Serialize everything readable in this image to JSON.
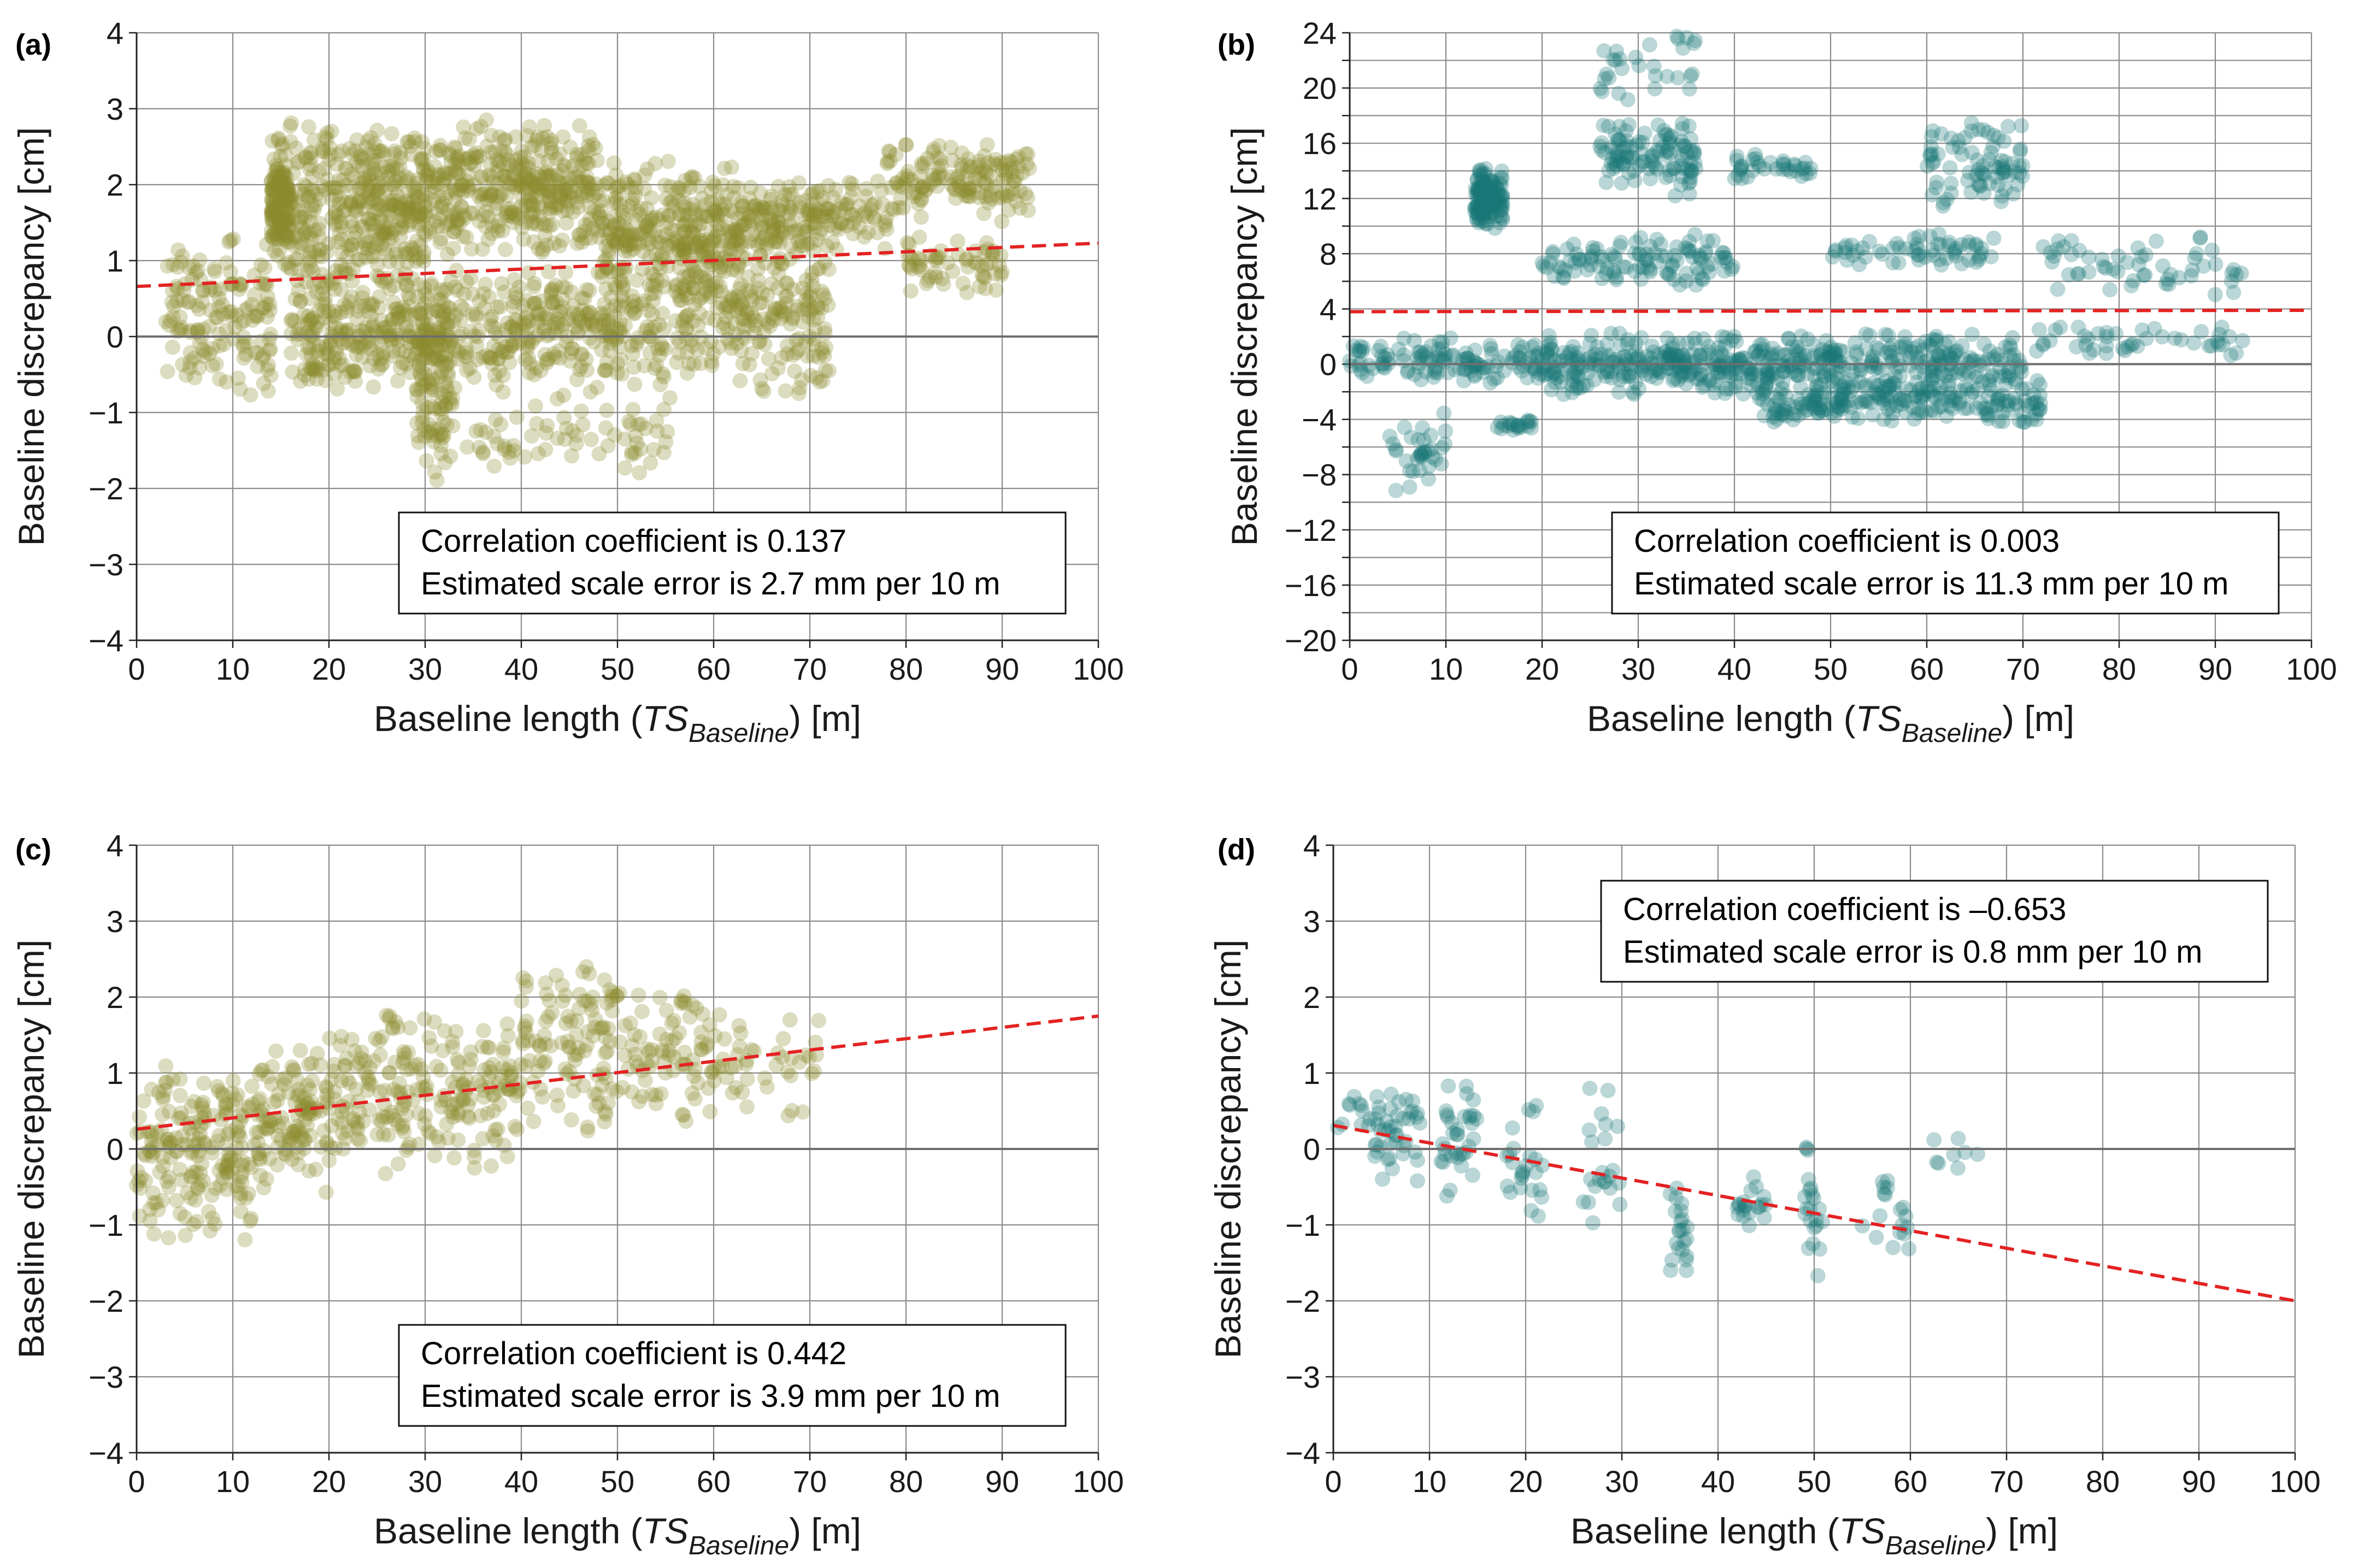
{
  "colors": {
    "olive": "#8a8a30",
    "teal": "#1b7878",
    "trend": "#e32222",
    "zero": "#6e6e6e",
    "grid": "#8c8c8c"
  },
  "chart_data": [
    {
      "panel": "(a)",
      "type": "scatter",
      "color_key": "olive",
      "xlabel": "Baseline length (",
      "xlabel_italic": "TS",
      "xlabel_sub": "Baseline",
      "xlabel_tail": ") [m]",
      "ylabel": "Baseline discrepancy [cm]",
      "xlim": [
        0,
        100
      ],
      "ylim": [
        -4,
        4
      ],
      "xticks": [
        0,
        10,
        20,
        30,
        40,
        50,
        60,
        70,
        80,
        90,
        100
      ],
      "xtick_labels": [
        "0",
        "10",
        "20",
        "30",
        "40",
        "50",
        "60",
        "70",
        "80",
        "90",
        "100"
      ],
      "yticks": [
        -4,
        -3,
        -2,
        -1,
        0,
        1,
        2,
        3,
        4
      ],
      "ytick_labels": [
        "−4",
        "−3",
        "−2",
        "−1",
        "0",
        "1",
        "2",
        "3",
        "4"
      ],
      "grid_y": [
        -4,
        -3,
        -2,
        -1,
        0,
        1,
        2,
        3,
        4
      ],
      "trend": {
        "x": [
          0,
          100
        ],
        "y": [
          0.66,
          1.23
        ]
      },
      "annotation_lines": [
        "Correlation coefficient is 0.137",
        "Estimated scale error is 2.7 mm per 10 m"
      ],
      "annotation_pos": "bottom-right",
      "clusters": [
        {
          "x": [
            3,
            14
          ],
          "y": [
            -0.9,
            1.4
          ],
          "n": 150
        },
        {
          "x": [
            14,
            16
          ],
          "y": [
            1.2,
            2.4
          ],
          "n": 110
        },
        {
          "x": [
            14,
            30
          ],
          "y": [
            0.5,
            2.9
          ],
          "n": 420
        },
        {
          "x": [
            16,
            30
          ],
          "y": [
            -0.8,
            0.9
          ],
          "n": 240
        },
        {
          "x": [
            29,
            33
          ],
          "y": [
            -2.0,
            0.6
          ],
          "n": 110
        },
        {
          "x": [
            30,
            48
          ],
          "y": [
            1.0,
            2.9
          ],
          "n": 380
        },
        {
          "x": [
            30,
            55
          ],
          "y": [
            -0.8,
            1.0
          ],
          "n": 340
        },
        {
          "x": [
            34,
            56
          ],
          "y": [
            -1.9,
            -0.6
          ],
          "n": 70
        },
        {
          "x": [
            48,
            62
          ],
          "y": [
            0.3,
            2.4
          ],
          "n": 280
        },
        {
          "x": [
            56,
            72
          ],
          "y": [
            -0.8,
            1.5
          ],
          "n": 260
        },
        {
          "x": [
            62,
            78
          ],
          "y": [
            1.1,
            2.1
          ],
          "n": 190
        },
        {
          "x": [
            78,
            93
          ],
          "y": [
            1.5,
            2.6
          ],
          "n": 150
        },
        {
          "x": [
            80,
            90
          ],
          "y": [
            0.5,
            1.4
          ],
          "n": 60
        }
      ]
    },
    {
      "panel": "(b)",
      "type": "scatter",
      "color_key": "teal",
      "xlabel": "Baseline length (",
      "xlabel_italic": "TS",
      "xlabel_sub": "Baseline",
      "xlabel_tail": ") [m]",
      "ylabel": "Baseline discrepancy [cm]",
      "xlim": [
        0,
        100
      ],
      "ylim": [
        -20,
        24
      ],
      "xticks": [
        0,
        10,
        20,
        30,
        40,
        50,
        60,
        70,
        80,
        90,
        100
      ],
      "xtick_labels": [
        "0",
        "10",
        "20",
        "30",
        "40",
        "50",
        "60",
        "70",
        "80",
        "90",
        "100"
      ],
      "yticks": [
        -20,
        -16,
        -12,
        -8,
        -4,
        0,
        4,
        8,
        12,
        16,
        20,
        24
      ],
      "ytick_labels": [
        "−20",
        "−16",
        "−12",
        "−8",
        "−4",
        "0",
        "4",
        "8",
        "12",
        "16",
        "20",
        "24"
      ],
      "grid_y": [
        -20,
        -18,
        -16,
        -14,
        -12,
        -10,
        -8,
        -6,
        -4,
        -2,
        0,
        2,
        4,
        6,
        8,
        10,
        12,
        14,
        16,
        18,
        20,
        22,
        24
      ],
      "trend": {
        "x": [
          0,
          100
        ],
        "y": [
          3.8,
          3.9
        ]
      },
      "annotation_lines": [
        "Correlation coefficient is 0.003",
        "Estimated scale error is 11.3 mm per 10 m"
      ],
      "annotation_pos": "bottom-right",
      "clusters": [
        {
          "x": [
            0,
            20
          ],
          "y": [
            -1.5,
            2.0
          ],
          "n": 130
        },
        {
          "x": [
            4,
            10
          ],
          "y": [
            -9.5,
            -3.5
          ],
          "n": 35
        },
        {
          "x": [
            13,
            16
          ],
          "y": [
            9.5,
            14.5
          ],
          "n": 130
        },
        {
          "x": [
            15,
            19
          ],
          "y": [
            -5.0,
            -4.0
          ],
          "n": 20
        },
        {
          "x": [
            20,
            70
          ],
          "y": [
            -2.5,
            2.5
          ],
          "n": 520
        },
        {
          "x": [
            20,
            40
          ],
          "y": [
            5.5,
            9.5
          ],
          "n": 110
        },
        {
          "x": [
            26,
            36
          ],
          "y": [
            12.0,
            18.0
          ],
          "n": 110
        },
        {
          "x": [
            26,
            36
          ],
          "y": [
            19.0,
            24.0
          ],
          "n": 30
        },
        {
          "x": [
            40,
            48
          ],
          "y": [
            13.0,
            15.5
          ],
          "n": 35
        },
        {
          "x": [
            42,
            72
          ],
          "y": [
            -4.5,
            -1.0
          ],
          "n": 220
        },
        {
          "x": [
            50,
            68
          ],
          "y": [
            7.0,
            9.5
          ],
          "n": 60
        },
        {
          "x": [
            60,
            70
          ],
          "y": [
            11.0,
            18.0
          ],
          "n": 80
        },
        {
          "x": [
            70,
            93
          ],
          "y": [
            0.5,
            3.0
          ],
          "n": 45
        },
        {
          "x": [
            72,
            93
          ],
          "y": [
            4.5,
            10.0
          ],
          "n": 55
        }
      ]
    },
    {
      "panel": "(c)",
      "type": "scatter",
      "color_key": "olive",
      "xlabel": "Baseline length (",
      "xlabel_italic": "TS",
      "xlabel_sub": "Baseline",
      "xlabel_tail": ") [m]",
      "ylabel": "Baseline discrepancy [cm]",
      "xlim": [
        0,
        100
      ],
      "ylim": [
        -4,
        4
      ],
      "xticks": [
        0,
        10,
        20,
        30,
        40,
        50,
        60,
        70,
        80,
        90,
        100
      ],
      "xtick_labels": [
        "0",
        "10",
        "20",
        "30",
        "40",
        "50",
        "60",
        "70",
        "80",
        "90",
        "100"
      ],
      "yticks": [
        -4,
        -3,
        -2,
        -1,
        0,
        1,
        2,
        3,
        4
      ],
      "ytick_labels": [
        "−4",
        "−3",
        "−2",
        "−1",
        "0",
        "1",
        "2",
        "3",
        "4"
      ],
      "grid_y": [
        -4,
        -3,
        -2,
        -1,
        0,
        1,
        2,
        3,
        4
      ],
      "trend": {
        "x": [
          0,
          100
        ],
        "y": [
          0.26,
          1.75
        ]
      },
      "annotation_lines": [
        "Correlation coefficient is 0.442",
        "Estimated scale error is 3.9 mm per 10 m"
      ],
      "annotation_pos": "bottom-right",
      "clusters": [
        {
          "x": [
            0,
            12
          ],
          "y": [
            -1.3,
            1.2
          ],
          "n": 190
        },
        {
          "x": [
            12,
            20
          ],
          "y": [
            -0.6,
            1.4
          ],
          "n": 120
        },
        {
          "x": [
            20,
            30
          ],
          "y": [
            -0.4,
            1.9
          ],
          "n": 120
        },
        {
          "x": [
            30,
            40
          ],
          "y": [
            -0.3,
            1.8
          ],
          "n": 110
        },
        {
          "x": [
            40,
            50
          ],
          "y": [
            0.1,
            2.5
          ],
          "n": 110
        },
        {
          "x": [
            50,
            60
          ],
          "y": [
            0.3,
            2.3
          ],
          "n": 80
        },
        {
          "x": [
            60,
            71
          ],
          "y": [
            0.4,
            1.8
          ],
          "n": 45
        }
      ]
    },
    {
      "panel": "(d)",
      "type": "scatter",
      "color_key": "teal",
      "xlabel": "Baseline length (",
      "xlabel_italic": "TS",
      "xlabel_sub": "Baseline",
      "xlabel_tail": ") [m]",
      "ylabel": "Baseline discrepancy [cm]",
      "xlim": [
        0,
        100
      ],
      "ylim": [
        -4,
        4
      ],
      "xticks": [
        0,
        10,
        20,
        30,
        40,
        50,
        60,
        70,
        80,
        90,
        100
      ],
      "xtick_labels": [
        "0",
        "10",
        "20",
        "30",
        "40",
        "50",
        "60",
        "70",
        "80",
        "90",
        "100"
      ],
      "yticks": [
        -4,
        -3,
        -2,
        -1,
        0,
        1,
        2,
        3,
        4
      ],
      "ytick_labels": [
        "−4",
        "−3",
        "−2",
        "−1",
        "0",
        "1",
        "2",
        "3",
        "4"
      ],
      "grid_y": [
        -4,
        -3,
        -2,
        -1,
        0,
        1,
        2,
        3,
        4
      ],
      "trend": {
        "x": [
          0,
          100
        ],
        "y": [
          0.31,
          -2.0
        ]
      },
      "annotation_lines": [
        "Correlation coefficient is –0.653",
        "Estimated scale error is 0.8 mm per 10 m"
      ],
      "annotation_pos": "top-center",
      "clusters": [
        {
          "x": [
            0,
            5
          ],
          "y": [
            0.2,
            0.8
          ],
          "n": 14
        },
        {
          "x": [
            4,
            9
          ],
          "y": [
            -0.5,
            0.9
          ],
          "n": 40
        },
        {
          "x": [
            11,
            15
          ],
          "y": [
            -0.7,
            1.1
          ],
          "n": 35
        },
        {
          "x": [
            18,
            22
          ],
          "y": [
            -1.3,
            0.9
          ],
          "n": 25
        },
        {
          "x": [
            25,
            30
          ],
          "y": [
            -1.6,
            1.1
          ],
          "n": 22
        },
        {
          "x": [
            35,
            37
          ],
          "y": [
            -1.8,
            -0.4
          ],
          "n": 22
        },
        {
          "x": [
            42,
            45
          ],
          "y": [
            -1.3,
            -0.3
          ],
          "n": 20
        },
        {
          "x": [
            49,
            51
          ],
          "y": [
            -1.7,
            0.2
          ],
          "n": 22
        },
        {
          "x": [
            55,
            60
          ],
          "y": [
            -1.4,
            -0.3
          ],
          "n": 18
        },
        {
          "x": [
            62,
            67
          ],
          "y": [
            -0.7,
            0.4
          ],
          "n": 8
        }
      ]
    }
  ]
}
